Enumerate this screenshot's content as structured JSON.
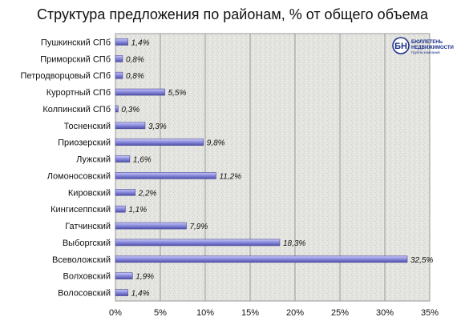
{
  "chart_data": {
    "type": "bar",
    "orientation": "horizontal",
    "title": "Структура предложения по районам, % от общего объема",
    "categories": [
      "Пушкинский СПб",
      "Приморский СПб",
      "Петродворцовый СПб",
      "Курортный СПб",
      "Колпинский СПб",
      "Тосненский",
      "Приозерский",
      "Лужский",
      "Ломоносовский",
      "Кировский",
      "Кингисеппский",
      "Гатчинский",
      "Выборгский",
      "Всеволожский",
      "Волховский",
      "Волосовский"
    ],
    "values": [
      1.4,
      0.8,
      0.8,
      5.5,
      0.3,
      3.3,
      9.8,
      1.6,
      11.2,
      2.2,
      1.1,
      7.9,
      18.3,
      32.5,
      1.9,
      1.4
    ],
    "value_labels": [
      "1,4%",
      "0,8%",
      "0,8%",
      "5,5%",
      "0,3%",
      "3,3%",
      "9,8%",
      "1,6%",
      "11,2%",
      "2,2%",
      "1,1%",
      "7,9%",
      "18,3%",
      "32,5%",
      "1,9%",
      "1,4%"
    ],
    "xlim": [
      0,
      35
    ],
    "xticks": [
      0,
      5,
      10,
      15,
      20,
      25,
      30,
      35
    ],
    "xtick_labels": [
      "0%",
      "5%",
      "10%",
      "15%",
      "20%",
      "25%",
      "30%",
      "35%"
    ],
    "xlabel": "",
    "ylabel": "",
    "grid": "vertical",
    "legend": "none",
    "bar_color": "#8e8ee0",
    "bar_edge_color": "#4a4a9c"
  },
  "logo": {
    "letters": "БН",
    "line1": "БЮЛЛЕТЕНЬ",
    "line2": "НЕДВИЖИМОСТИ",
    "line3": "Группа компаний",
    "color": "#1b2f8a"
  }
}
